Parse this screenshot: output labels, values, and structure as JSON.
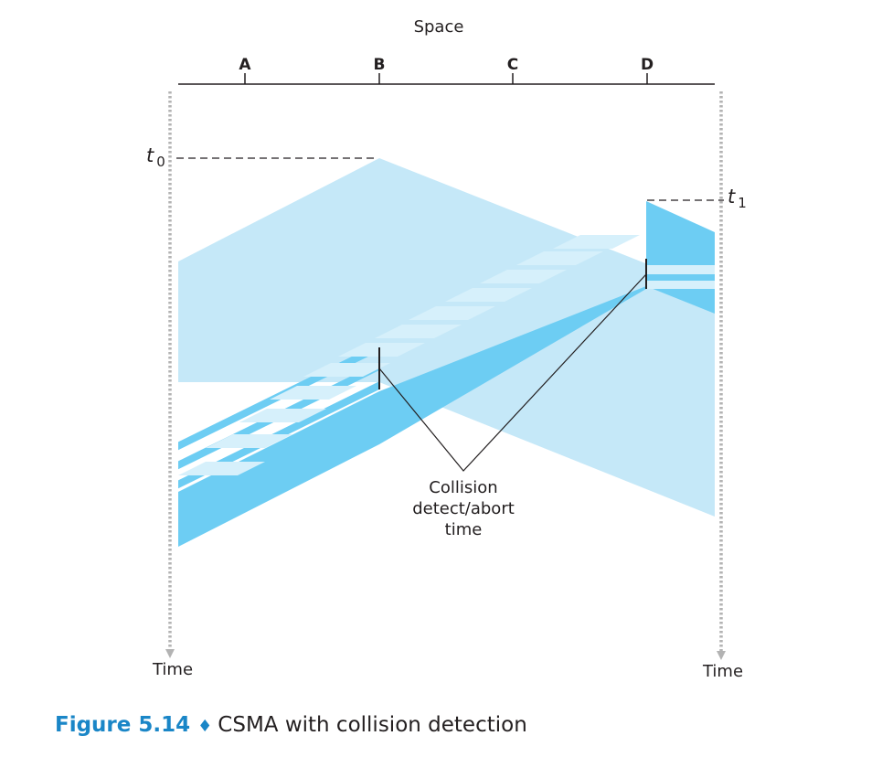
{
  "axis": {
    "space_label": "Space",
    "nodes": [
      "A",
      "B",
      "C",
      "D"
    ],
    "time_label_left": "Time",
    "time_label_right": "Time"
  },
  "markers": {
    "t0": {
      "var": "t",
      "sub": "0"
    },
    "t1": {
      "var": "t",
      "sub": "1"
    }
  },
  "annotation": {
    "lines": [
      "Collision",
      "detect/abort",
      "time"
    ]
  },
  "caption": {
    "figure": "Figure 5.14",
    "separator": "♦",
    "text": "CSMA with collision detection"
  },
  "colors": {
    "light_blue": "#c5e8f8",
    "mid_blue": "#6dcdf3",
    "stripe_light": "#d6f0fb",
    "accent_blue": "#1a86c7",
    "ink": "#231f20",
    "dotted": "#b3b3b3"
  }
}
